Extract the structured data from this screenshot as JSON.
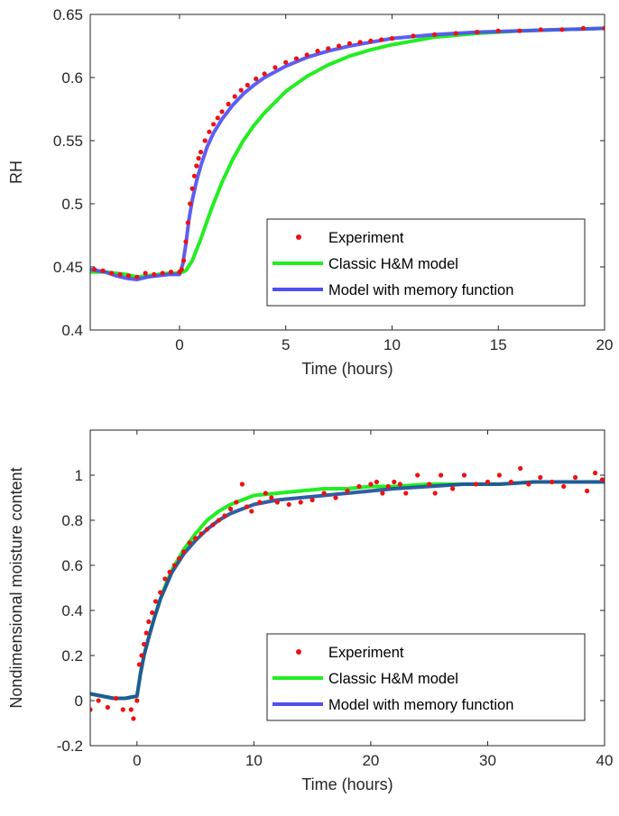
{
  "colors": {
    "experiment": "#ee1111",
    "classic": "#22ee22",
    "memory": "#5050f0",
    "memory_dark": "#1f4fa0"
  },
  "chart_data": [
    {
      "type": "line",
      "xlabel": "Time (hours)",
      "ylabel": "RH",
      "xlim": [
        -4.2,
        20
      ],
      "ylim": [
        0.4,
        0.65
      ],
      "xticks": [
        0,
        5,
        10,
        15,
        20
      ],
      "xtick_labels": [
        "0",
        "5",
        "10",
        "15",
        "20"
      ],
      "yticks": [
        0.4,
        0.45,
        0.5,
        0.55,
        0.6,
        0.65
      ],
      "ytick_labels": [
        "0.4",
        "0.45",
        "0.5",
        "0.55",
        "0.6",
        "0.65"
      ],
      "legend_position": "lower-right",
      "series": [
        {
          "name": "Experiment",
          "kind": "scatter",
          "x": [
            -4.0,
            -3.6,
            -3.2,
            -2.8,
            -2.4,
            -2.0,
            -1.6,
            -1.2,
            -0.8,
            -0.4,
            0.0,
            0.1,
            0.2,
            0.3,
            0.4,
            0.5,
            0.6,
            0.7,
            0.8,
            0.9,
            1.0,
            1.2,
            1.4,
            1.6,
            1.8,
            2.0,
            2.3,
            2.6,
            2.9,
            3.2,
            3.6,
            4.0,
            4.5,
            5.0,
            5.5,
            6.0,
            6.5,
            7.0,
            7.5,
            8.0,
            8.5,
            9.0,
            9.5,
            10.0,
            11.0,
            12.0,
            13.0,
            14.0,
            15.0,
            16.0,
            17.0,
            18.0,
            19.0,
            20.0
          ],
          "y": [
            0.448,
            0.447,
            0.445,
            0.444,
            0.443,
            0.442,
            0.445,
            0.444,
            0.445,
            0.446,
            0.446,
            0.448,
            0.455,
            0.47,
            0.485,
            0.5,
            0.512,
            0.522,
            0.53,
            0.536,
            0.541,
            0.55,
            0.557,
            0.563,
            0.568,
            0.573,
            0.579,
            0.585,
            0.59,
            0.594,
            0.599,
            0.603,
            0.608,
            0.612,
            0.615,
            0.618,
            0.621,
            0.623,
            0.625,
            0.627,
            0.628,
            0.629,
            0.63,
            0.631,
            0.633,
            0.634,
            0.635,
            0.636,
            0.637,
            0.637,
            0.638,
            0.638,
            0.639,
            0.639
          ]
        },
        {
          "name": "Classic H&M model",
          "kind": "line",
          "x": [
            -4.2,
            -3.5,
            -3.0,
            -2.5,
            -2.0,
            -1.5,
            -1.0,
            -0.5,
            0.0,
            0.3,
            0.6,
            1.0,
            1.5,
            2.0,
            2.5,
            3.0,
            3.5,
            4.0,
            5.0,
            6.0,
            7.0,
            8.0,
            9.0,
            10.0,
            12.0,
            14.0,
            16.0,
            18.0,
            20.0
          ],
          "y": [
            0.446,
            0.446,
            0.445,
            0.444,
            0.442,
            0.443,
            0.444,
            0.445,
            0.445,
            0.447,
            0.455,
            0.472,
            0.496,
            0.517,
            0.535,
            0.55,
            0.562,
            0.572,
            0.589,
            0.601,
            0.61,
            0.617,
            0.622,
            0.626,
            0.632,
            0.635,
            0.637,
            0.638,
            0.639
          ]
        },
        {
          "name": "Model with memory function",
          "kind": "line",
          "x": [
            -4.2,
            -3.5,
            -3.0,
            -2.5,
            -2.0,
            -1.5,
            -1.0,
            -0.5,
            0.0,
            0.15,
            0.3,
            0.45,
            0.6,
            0.8,
            1.0,
            1.3,
            1.6,
            2.0,
            2.5,
            3.0,
            3.5,
            4.0,
            5.0,
            6.0,
            7.0,
            8.0,
            9.0,
            10.0,
            12.0,
            14.0,
            16.0,
            18.0,
            20.0
          ],
          "y": [
            0.448,
            0.446,
            0.443,
            0.441,
            0.44,
            0.442,
            0.443,
            0.444,
            0.444,
            0.452,
            0.468,
            0.488,
            0.503,
            0.518,
            0.53,
            0.545,
            0.556,
            0.567,
            0.578,
            0.587,
            0.594,
            0.6,
            0.609,
            0.616,
            0.621,
            0.625,
            0.628,
            0.631,
            0.634,
            0.636,
            0.637,
            0.638,
            0.639
          ]
        }
      ]
    },
    {
      "type": "line",
      "xlabel": "Time (hours)",
      "ylabel": "Nondimensional moisture content",
      "xlim": [
        -4,
        40
      ],
      "ylim": [
        -0.2,
        1.2
      ],
      "xticks": [
        0,
        10,
        20,
        30,
        40
      ],
      "xtick_labels": [
        "0",
        "10",
        "20",
        "30",
        "40"
      ],
      "yticks": [
        -0.2,
        0,
        0.2,
        0.4,
        0.6,
        0.8,
        1
      ],
      "ytick_labels": [
        "-0.2",
        "0",
        "0.2",
        "0.4",
        "0.6",
        "0.8",
        "1"
      ],
      "legend_position": "lower-right",
      "series": [
        {
          "name": "Experiment",
          "kind": "scatter",
          "x": [
            -4.0,
            -3.3,
            -2.5,
            -1.8,
            -1.2,
            -0.5,
            -0.3,
            0.0,
            0.2,
            0.4,
            0.6,
            0.8,
            1.0,
            1.3,
            1.6,
            2.0,
            2.4,
            2.8,
            3.2,
            3.6,
            4.0,
            4.5,
            5.0,
            5.5,
            6.0,
            6.5,
            7.0,
            7.5,
            8.0,
            8.5,
            9.0,
            9.4,
            9.8,
            10.5,
            11.0,
            11.5,
            12.0,
            13.0,
            14.0,
            15.0,
            16.0,
            17.0,
            18.0,
            19.0,
            20.0,
            20.5,
            21.0,
            21.5,
            22.0,
            22.5,
            23.0,
            24.0,
            25.0,
            25.5,
            26.0,
            27.0,
            28.0,
            29.0,
            30.0,
            31.0,
            32.0,
            32.8,
            33.5,
            34.5,
            35.5,
            36.5,
            37.5,
            38.5,
            39.2,
            39.8
          ],
          "y": [
            -0.04,
            0.0,
            -0.03,
            0.01,
            -0.04,
            -0.04,
            -0.08,
            0.0,
            0.16,
            0.2,
            0.25,
            0.3,
            0.35,
            0.39,
            0.44,
            0.48,
            0.54,
            0.57,
            0.6,
            0.63,
            0.66,
            0.7,
            0.72,
            0.74,
            0.76,
            0.78,
            0.8,
            0.82,
            0.85,
            0.88,
            0.96,
            0.86,
            0.84,
            0.88,
            0.92,
            0.9,
            0.88,
            0.87,
            0.88,
            0.89,
            0.92,
            0.9,
            0.93,
            0.95,
            0.96,
            0.97,
            0.92,
            0.95,
            0.97,
            0.96,
            0.92,
            1.0,
            0.96,
            0.92,
            1.0,
            0.94,
            1.0,
            0.96,
            0.97,
            1.0,
            0.97,
            1.03,
            0.96,
            0.99,
            0.97,
            0.95,
            0.99,
            0.93,
            1.01,
            0.98
          ]
        },
        {
          "name": "Classic H&M model",
          "kind": "line",
          "x": [
            -4,
            -3,
            -2,
            -1,
            0,
            0.3,
            0.6,
            1,
            1.5,
            2,
            2.5,
            3,
            4,
            5,
            6,
            7,
            8,
            9,
            10,
            12,
            14,
            16,
            18,
            20,
            22,
            25,
            28,
            31,
            34,
            37,
            40
          ],
          "y": [
            0.03,
            0.02,
            0.01,
            0.01,
            0.02,
            0.12,
            0.2,
            0.28,
            0.37,
            0.45,
            0.52,
            0.58,
            0.67,
            0.74,
            0.8,
            0.84,
            0.87,
            0.89,
            0.91,
            0.92,
            0.93,
            0.94,
            0.94,
            0.95,
            0.95,
            0.96,
            0.96,
            0.96,
            0.97,
            0.97,
            0.97
          ]
        },
        {
          "name": "Model with memory function",
          "kind": "line",
          "x": [
            -4,
            -3,
            -2,
            -1,
            0,
            0.3,
            0.6,
            1,
            1.5,
            2,
            2.5,
            3,
            4,
            5,
            6,
            7,
            8,
            9,
            10,
            12,
            14,
            16,
            18,
            20,
            22,
            25,
            28,
            31,
            34,
            37,
            40
          ],
          "y": [
            0.03,
            0.02,
            0.01,
            0.01,
            0.02,
            0.12,
            0.2,
            0.28,
            0.37,
            0.45,
            0.51,
            0.57,
            0.65,
            0.71,
            0.76,
            0.8,
            0.83,
            0.85,
            0.87,
            0.89,
            0.9,
            0.91,
            0.92,
            0.93,
            0.94,
            0.95,
            0.96,
            0.96,
            0.97,
            0.97,
            0.97
          ]
        }
      ]
    }
  ]
}
